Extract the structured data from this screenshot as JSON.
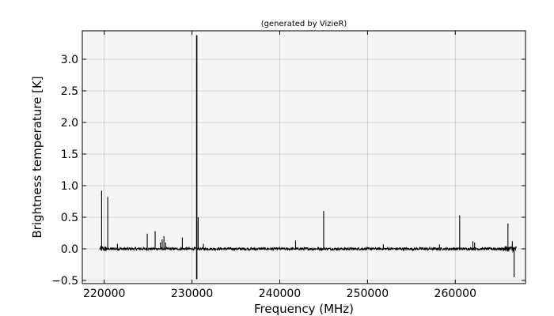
{
  "chart_data": {
    "type": "line",
    "title": "(generated by VizieR)",
    "xlabel": "Frequency (MHz)",
    "ylabel": "Brightness temperature [K]",
    "xlim": [
      217500,
      268000
    ],
    "ylim": [
      -0.55,
      3.45
    ],
    "xticks": [
      220000,
      230000,
      240000,
      250000,
      260000
    ],
    "xtick_labels": [
      "220000",
      "230000",
      "240000",
      "250000",
      "260000"
    ],
    "yticks": [
      -0.5,
      0.0,
      0.5,
      1.0,
      1.5,
      2.0,
      2.5,
      3.0
    ],
    "ytick_labels": [
      "−0.5",
      "0.0",
      "0.5",
      "1.0",
      "1.5",
      "2.0",
      "2.5",
      "3.0"
    ],
    "grid": true,
    "line_color": "#000000",
    "background_color": "#f5f5f5",
    "spectrum_range": [
      219500,
      267000
    ],
    "noise_rms": 0.02,
    "peaks": [
      {
        "x": 219700,
        "y": 0.92
      },
      {
        "x": 220400,
        "y": 0.82
      },
      {
        "x": 221500,
        "y": 0.08
      },
      {
        "x": 224900,
        "y": 0.24
      },
      {
        "x": 225800,
        "y": 0.28
      },
      {
        "x": 226400,
        "y": 0.1
      },
      {
        "x": 226600,
        "y": 0.15
      },
      {
        "x": 226800,
        "y": 0.2
      },
      {
        "x": 227000,
        "y": 0.1
      },
      {
        "x": 228900,
        "y": 0.18
      },
      {
        "x": 230538,
        "y": 3.38,
        "min": -0.48
      },
      {
        "x": 230700,
        "y": 0.5
      },
      {
        "x": 231300,
        "y": 0.08
      },
      {
        "x": 241800,
        "y": 0.13
      },
      {
        "x": 245000,
        "y": 0.6
      },
      {
        "x": 251800,
        "y": 0.07
      },
      {
        "x": 258200,
        "y": 0.07
      },
      {
        "x": 260500,
        "y": 0.53
      },
      {
        "x": 262000,
        "y": 0.12
      },
      {
        "x": 262200,
        "y": 0.1
      },
      {
        "x": 266000,
        "y": 0.4
      },
      {
        "x": 266500,
        "y": 0.12
      },
      {
        "x": 266700,
        "y": -0.45
      }
    ]
  }
}
